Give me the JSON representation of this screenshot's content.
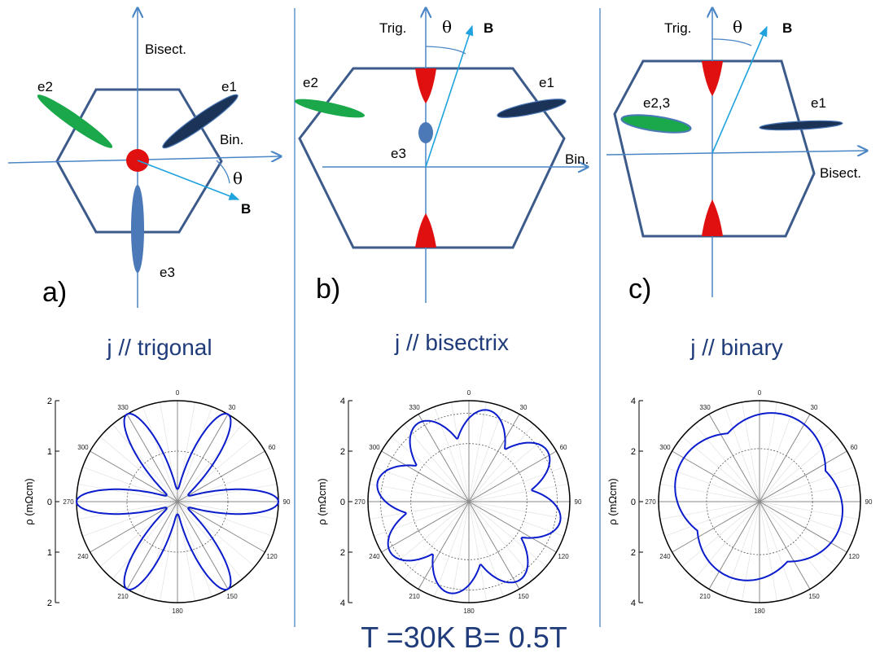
{
  "colors": {
    "axis": "#4a86c5",
    "hexagon": "#3c5a8a",
    "pocket_green": "#1aa84a",
    "pocket_navy": "#1c3358",
    "pocket_blue": "#4b79b8",
    "hole_red": "#e01010",
    "field_arrow": "#1fa2dd",
    "curve": "#0a1ccc",
    "heading": "#1f3b7a"
  },
  "diagrams": [
    {
      "panel_label": "a)",
      "heading": "j // trigonal",
      "axis_labels": {
        "vertical": "Bisect.",
        "horizontal": "Bin."
      },
      "field": {
        "theta": "θ",
        "b": "B"
      },
      "pockets": [
        "e1",
        "e2",
        "e3"
      ]
    },
    {
      "panel_label": "b)",
      "heading": "j // bisectrix",
      "axis_labels": {
        "vertical": "Trig.",
        "horizontal": "Bin."
      },
      "field": {
        "theta": "θ",
        "b": "B"
      },
      "pockets": [
        "e1",
        "e2",
        "e3"
      ]
    },
    {
      "panel_label": "c)",
      "heading": "j // binary",
      "axis_labels": {
        "vertical": "Trig.",
        "horizontal": "Bisect."
      },
      "field": {
        "theta": "θ",
        "b": "B"
      },
      "pockets": [
        "e1",
        "e2,3"
      ]
    }
  ],
  "footer": "T =30K  B= 0.5T",
  "chart_data": [
    {
      "type": "polar",
      "ylabel": "ρ (mΩcm)",
      "r_max": 2,
      "inner_ring": 1,
      "r_ticks": [
        {
          "label": "2",
          "r": 2,
          "side": "top"
        },
        {
          "label": "1",
          "r": 1,
          "side": "top"
        },
        {
          "label": "0",
          "r": 0,
          "side": "center"
        },
        {
          "label": "1",
          "r": 1,
          "side": "bottom"
        },
        {
          "label": "2",
          "r": 2,
          "side": "bottom"
        }
      ],
      "angle_labels": [
        "0",
        "30",
        "60",
        "90",
        "120",
        "150",
        "180",
        "210",
        "240",
        "270",
        "300",
        "330"
      ],
      "curve": {
        "base": 0.25,
        "amp": 1.75,
        "mult": 3,
        "shift": 90,
        "power": 3,
        "pert_amp": 0,
        "pert_shift": 0
      }
    },
    {
      "type": "polar",
      "ylabel": "ρ (mΩcm)",
      "r_max": 4,
      "inner_ring": 2.3,
      "dotted_outer_ring": 3.5,
      "r_ticks": [
        {
          "label": "4",
          "r": 4,
          "side": "top"
        },
        {
          "label": "2",
          "r": 2,
          "side": "top"
        },
        {
          "label": "0",
          "r": 0,
          "side": "center"
        },
        {
          "label": "2",
          "r": 2,
          "side": "bottom"
        },
        {
          "label": "4",
          "r": 4,
          "side": "bottom"
        }
      ],
      "angle_labels": [
        "0",
        "30",
        "60",
        "90",
        "120",
        "150",
        "180",
        "210",
        "240",
        "270",
        "300",
        "330"
      ],
      "curve": {
        "base": 2.5,
        "amp": 1.2,
        "mult": 4,
        "shift": 12,
        "power": 1,
        "pert_amp": 0,
        "pert_shift": 0
      }
    },
    {
      "type": "polar",
      "ylabel": "ρ (mΩcm)",
      "r_max": 4,
      "inner_ring": 2.1,
      "r_ticks": [
        {
          "label": "4",
          "r": 4,
          "side": "top"
        },
        {
          "label": "2",
          "r": 2,
          "side": "top"
        },
        {
          "label": "0",
          "r": 0,
          "side": "center"
        },
        {
          "label": "2",
          "r": 2,
          "side": "bottom"
        },
        {
          "label": "4",
          "r": 4,
          "side": "bottom"
        }
      ],
      "angle_labels": [
        "0",
        "30",
        "60",
        "90",
        "120",
        "150",
        "180",
        "210",
        "240",
        "270",
        "300",
        "330"
      ],
      "curve": {
        "base": 2.8,
        "amp": 0.6,
        "mult": 2,
        "shift": 20,
        "power": 1,
        "pert_amp": 0.2,
        "pert_shift": 0
      }
    }
  ]
}
